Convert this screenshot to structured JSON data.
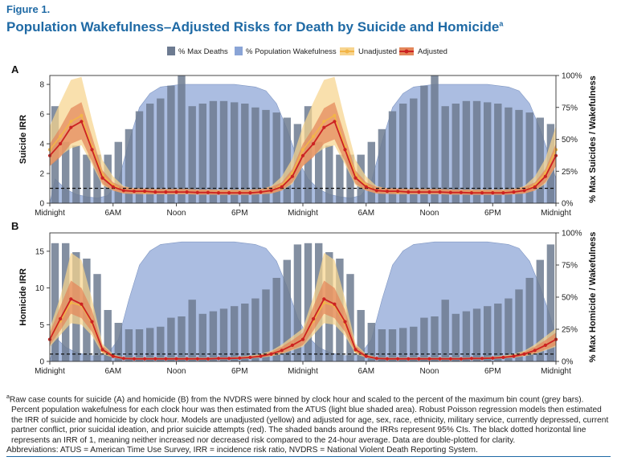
{
  "figure": {
    "label": "Figure 1.",
    "title": "Population Wakefulness–Adjusted Risks for Death by Suicide and Homicide",
    "title_superscript": "a"
  },
  "legend": {
    "max_deaths": "% Max Deaths",
    "wakefulness": "% Population Wakefulness",
    "unadjusted": "Unadjusted",
    "adjusted": "Adjusted"
  },
  "colors": {
    "bars": "#6d7b91",
    "wake_fill": "#8aa4d6",
    "unadjusted": "#f2b548",
    "unadjusted_band": "#f7d48e",
    "adjusted": "#cc2222",
    "adjusted_band": "#e3865a",
    "reference_line": "#111111",
    "title": "#1f6aa5"
  },
  "chart_data": [
    {
      "panel": "A",
      "type": "bar+line",
      "ylabel": "Suicide IRR",
      "y2label": "% Max Suicides / Wakefulness",
      "ylim": [
        0,
        8.6
      ],
      "yticks": [
        0,
        2,
        4,
        6,
        8
      ],
      "y2ticks": [
        "0%",
        "25%",
        "50%",
        "75%",
        "100%"
      ],
      "xticklabels": [
        "Midnight",
        "6AM",
        "Noon",
        "6PM",
        "Midnight",
        "6AM",
        "Noon",
        "6PM",
        "Midnight"
      ],
      "xtick_hours": [
        0,
        6,
        12,
        18,
        24,
        30,
        36,
        42,
        48
      ],
      "reference_line": 1,
      "grid": false,
      "legend_position": "top",
      "bars_pct": [
        76,
        48,
        45,
        38,
        38,
        38,
        48,
        58,
        72,
        78,
        82,
        92,
        100,
        76,
        78,
        80,
        80,
        79,
        78,
        75,
        73,
        71,
        67,
        62,
        76,
        48,
        45,
        38,
        38,
        38,
        48,
        58,
        72,
        78,
        82,
        92,
        100,
        76,
        78,
        80,
        80,
        79,
        78,
        75,
        73,
        71,
        67,
        62
      ],
      "wakefulness_pct": [
        19,
        11,
        7,
        5,
        4,
        6,
        17,
        48,
        75,
        86,
        91,
        92,
        93,
        93,
        93,
        93,
        93,
        93,
        92,
        91,
        88,
        78,
        58,
        34,
        19,
        11,
        7,
        5,
        4,
        6,
        17,
        48,
        75,
        86,
        91,
        92,
        93,
        93,
        93,
        93,
        93,
        93,
        92,
        91,
        88,
        78,
        58,
        34
      ],
      "series": [
        {
          "name": "Unadjusted",
          "values": [
            3.6,
            4.5,
            5.5,
            5.9,
            3.8,
            1.9,
            1.2,
            0.85,
            0.8,
            0.75,
            0.75,
            0.75,
            0.75,
            0.75,
            0.72,
            0.72,
            0.72,
            0.72,
            0.72,
            0.72,
            0.75,
            0.85,
            1.2,
            2.0,
            3.6,
            4.5,
            5.5,
            5.9,
            3.8,
            1.9,
            1.2,
            0.85,
            0.8,
            0.75,
            0.75,
            0.75,
            0.75,
            0.75,
            0.72,
            0.72,
            0.72,
            0.72,
            0.72,
            0.72,
            0.75,
            0.85,
            1.2,
            2.0,
            3.6
          ]
        },
        {
          "name": "Adjusted",
          "values": [
            3.2,
            4.0,
            5.1,
            5.5,
            3.6,
            1.7,
            1.1,
            0.85,
            0.8,
            0.8,
            0.75,
            0.75,
            0.75,
            0.75,
            0.72,
            0.72,
            0.7,
            0.7,
            0.7,
            0.7,
            0.75,
            0.85,
            1.1,
            1.8,
            3.2,
            4.0,
            5.1,
            5.5,
            3.6,
            1.7,
            1.1,
            0.85,
            0.8,
            0.8,
            0.75,
            0.75,
            0.75,
            0.75,
            0.72,
            0.72,
            0.7,
            0.7,
            0.7,
            0.7,
            0.75,
            0.85,
            1.1,
            1.8,
            3.2
          ]
        }
      ],
      "ci_unadjusted_lower": [
        2.5,
        3.2,
        3.7,
        3.9,
        2.6,
        1.2,
        0.85,
        0.65,
        0.62,
        0.6,
        0.6,
        0.6,
        0.6,
        0.6,
        0.58,
        0.58,
        0.58,
        0.58,
        0.58,
        0.58,
        0.6,
        0.65,
        0.85,
        1.3,
        2.5,
        3.2,
        3.7,
        3.9,
        2.6,
        1.2,
        0.85,
        0.65,
        0.62,
        0.6,
        0.6,
        0.6,
        0.6,
        0.6,
        0.58,
        0.58,
        0.58,
        0.58,
        0.58,
        0.58,
        0.6,
        0.65,
        0.85,
        1.3,
        2.5
      ],
      "ci_unadjusted_upper": [
        5.2,
        6.8,
        8.3,
        8.5,
        5.6,
        2.9,
        1.8,
        1.15,
        1.0,
        0.95,
        0.95,
        0.95,
        0.95,
        0.95,
        0.92,
        0.92,
        0.92,
        0.92,
        0.92,
        0.92,
        0.95,
        1.15,
        1.8,
        3.0,
        5.2,
        6.8,
        8.3,
        8.5,
        5.6,
        2.9,
        1.8,
        1.15,
        1.0,
        0.95,
        0.95,
        0.95,
        0.95,
        0.95,
        0.92,
        0.92,
        0.92,
        0.92,
        0.92,
        0.92,
        0.95,
        1.15,
        1.8,
        3.0,
        5.2
      ],
      "ci_adjusted_lower": [
        2.5,
        3.1,
        4.0,
        4.3,
        2.8,
        1.3,
        0.85,
        0.65,
        0.62,
        0.62,
        0.6,
        0.6,
        0.6,
        0.6,
        0.58,
        0.58,
        0.56,
        0.56,
        0.56,
        0.56,
        0.6,
        0.65,
        0.85,
        1.4,
        2.5,
        3.1,
        4.0,
        4.3,
        2.8,
        1.3,
        0.85,
        0.65,
        0.62,
        0.62,
        0.6,
        0.6,
        0.6,
        0.6,
        0.58,
        0.58,
        0.56,
        0.56,
        0.56,
        0.56,
        0.6,
        0.65,
        0.85,
        1.4,
        2.5
      ],
      "ci_adjusted_upper": [
        4.0,
        5.1,
        6.4,
        6.8,
        4.5,
        2.2,
        1.4,
        1.1,
        1.0,
        1.0,
        0.95,
        0.95,
        0.95,
        0.95,
        0.92,
        0.92,
        0.9,
        0.9,
        0.9,
        0.9,
        0.95,
        1.1,
        1.4,
        2.3,
        4.0,
        5.1,
        6.4,
        6.8,
        4.5,
        2.2,
        1.4,
        1.1,
        1.0,
        1.0,
        0.95,
        0.95,
        0.95,
        0.95,
        0.92,
        0.92,
        0.9,
        0.9,
        0.9,
        0.9,
        0.95,
        1.1,
        1.4,
        2.3,
        4.0
      ]
    },
    {
      "panel": "B",
      "type": "bar+line",
      "ylabel": "Homicide IRR",
      "y2label": "% Max Homicide / Wakefulness",
      "ylim": [
        0,
        17.5
      ],
      "yticks": [
        0,
        5,
        10,
        15
      ],
      "y2ticks": [
        "0%",
        "25%",
        "50%",
        "75%",
        "100%"
      ],
      "xticklabels": [
        "Midnight",
        "6AM",
        "Noon",
        "6PM",
        "Midnight",
        "6AM",
        "Noon",
        "6PM",
        "Midnight"
      ],
      "xtick_hours": [
        0,
        6,
        12,
        18,
        24,
        30,
        36,
        42,
        48
      ],
      "reference_line": 1,
      "grid": false,
      "legend_position": "top",
      "bars_pct": [
        92,
        92,
        85,
        80,
        68,
        40,
        30,
        25,
        25,
        26,
        27,
        34,
        35,
        48,
        37,
        39,
        41,
        43,
        45,
        49,
        56,
        65,
        79,
        91,
        92,
        92,
        85,
        80,
        68,
        40,
        30,
        25,
        25,
        26,
        27,
        34,
        35,
        48,
        37,
        39,
        41,
        43,
        45,
        49,
        56,
        65,
        79,
        91
      ],
      "wakefulness_pct": [
        19,
        11,
        7,
        5,
        4,
        6,
        17,
        48,
        75,
        86,
        91,
        92,
        93,
        93,
        93,
        93,
        93,
        93,
        92,
        91,
        88,
        78,
        58,
        34,
        19,
        11,
        7,
        5,
        4,
        6,
        17,
        48,
        75,
        86,
        91,
        92,
        93,
        93,
        93,
        93,
        93,
        93,
        92,
        91,
        88,
        78,
        58,
        34
      ],
      "series": [
        {
          "name": "Unadjusted",
          "values": [
            3.0,
            5.5,
            8.0,
            7.6,
            5.2,
            1.5,
            0.7,
            0.4,
            0.35,
            0.35,
            0.35,
            0.35,
            0.35,
            0.35,
            0.35,
            0.35,
            0.4,
            0.4,
            0.45,
            0.55,
            0.7,
            1.0,
            1.5,
            2.2,
            3.0,
            5.5,
            8.0,
            7.6,
            5.2,
            1.5,
            0.7,
            0.4,
            0.35,
            0.35,
            0.35,
            0.35,
            0.35,
            0.35,
            0.35,
            0.35,
            0.4,
            0.4,
            0.45,
            0.55,
            0.7,
            1.0,
            1.5,
            2.2,
            3.0
          ]
        },
        {
          "name": "Adjusted",
          "values": [
            3.0,
            5.8,
            8.5,
            7.8,
            5.4,
            1.6,
            0.7,
            0.4,
            0.35,
            0.35,
            0.35,
            0.35,
            0.35,
            0.35,
            0.35,
            0.35,
            0.4,
            0.4,
            0.45,
            0.55,
            0.7,
            1.0,
            1.5,
            2.2,
            3.0,
            5.8,
            8.5,
            7.8,
            5.4,
            1.6,
            0.7,
            0.4,
            0.35,
            0.35,
            0.35,
            0.35,
            0.35,
            0.35,
            0.35,
            0.35,
            0.4,
            0.4,
            0.45,
            0.55,
            0.7,
            1.0,
            1.5,
            2.2,
            3.0
          ]
        }
      ],
      "ci_unadjusted_lower": [
        2.0,
        3.6,
        5.2,
        5.0,
        3.5,
        1.0,
        0.5,
        0.3,
        0.25,
        0.25,
        0.25,
        0.25,
        0.25,
        0.25,
        0.25,
        0.25,
        0.3,
        0.3,
        0.33,
        0.4,
        0.5,
        0.7,
        1.0,
        1.5,
        2.0,
        3.6,
        5.2,
        5.0,
        3.5,
        1.0,
        0.5,
        0.3,
        0.25,
        0.25,
        0.25,
        0.25,
        0.25,
        0.25,
        0.25,
        0.25,
        0.3,
        0.3,
        0.33,
        0.4,
        0.5,
        0.7,
        1.0,
        1.5,
        2.0
      ],
      "ci_unadjusted_upper": [
        4.5,
        8.8,
        14.8,
        13.8,
        8.5,
        2.4,
        1.0,
        0.55,
        0.5,
        0.5,
        0.5,
        0.5,
        0.5,
        0.5,
        0.5,
        0.5,
        0.55,
        0.55,
        0.65,
        0.8,
        1.0,
        1.45,
        2.3,
        3.4,
        4.5,
        8.8,
        14.8,
        13.8,
        8.5,
        2.4,
        1.0,
        0.55,
        0.5,
        0.5,
        0.5,
        0.5,
        0.5,
        0.5,
        0.5,
        0.5,
        0.55,
        0.55,
        0.65,
        0.8,
        1.0,
        1.45,
        2.3,
        3.4,
        4.5
      ],
      "ci_adjusted_lower": [
        2.2,
        4.2,
        6.5,
        5.9,
        4.0,
        1.2,
        0.5,
        0.3,
        0.25,
        0.25,
        0.25,
        0.25,
        0.25,
        0.25,
        0.25,
        0.25,
        0.3,
        0.3,
        0.35,
        0.42,
        0.55,
        0.75,
        1.1,
        1.6,
        2.2,
        4.2,
        6.5,
        5.9,
        4.0,
        1.2,
        0.5,
        0.3,
        0.25,
        0.25,
        0.25,
        0.25,
        0.25,
        0.25,
        0.25,
        0.25,
        0.3,
        0.3,
        0.35,
        0.42,
        0.55,
        0.75,
        1.1,
        1.6,
        2.2
      ],
      "ci_adjusted_upper": [
        3.9,
        7.5,
        11.0,
        10.0,
        7.0,
        2.1,
        0.9,
        0.5,
        0.45,
        0.45,
        0.45,
        0.45,
        0.45,
        0.45,
        0.45,
        0.45,
        0.5,
        0.5,
        0.58,
        0.7,
        0.9,
        1.3,
        2.0,
        2.9,
        3.9,
        7.5,
        11.0,
        10.0,
        7.0,
        2.1,
        0.9,
        0.5,
        0.45,
        0.45,
        0.45,
        0.45,
        0.45,
        0.45,
        0.45,
        0.45,
        0.5,
        0.5,
        0.58,
        0.7,
        0.9,
        1.3,
        2.0,
        2.9,
        3.9
      ]
    }
  ],
  "footnote": {
    "marker": "a",
    "text": "Raw case counts for suicide (A) and homicide (B) from the NVDRS were binned by clock hour and scaled to the percent of the maximum bin count (grey bars). Percent population wakefulness for each clock hour was then estimated from the ATUS (light blue shaded area). Robust Poisson regression models then estimated the IRR of suicide and homicide by clock hour. Models are unadjusted (yellow) and adjusted for age, sex, race, ethnicity, military service, currently depressed, current partner conflict, prior suicidal ideation, and prior suicide attempts (red). The shaded bands around the IRRs represent 95% CIs. The black dotted horizontal line represents an IRR of 1, meaning neither increased nor decreased risk compared to the 24-hour average. Data are double-plotted for clarity.",
    "abbreviations": "Abbreviations: ATUS = American Time Use Survey, IRR = incidence risk ratio, NVDRS = National Violent Death Reporting System."
  }
}
